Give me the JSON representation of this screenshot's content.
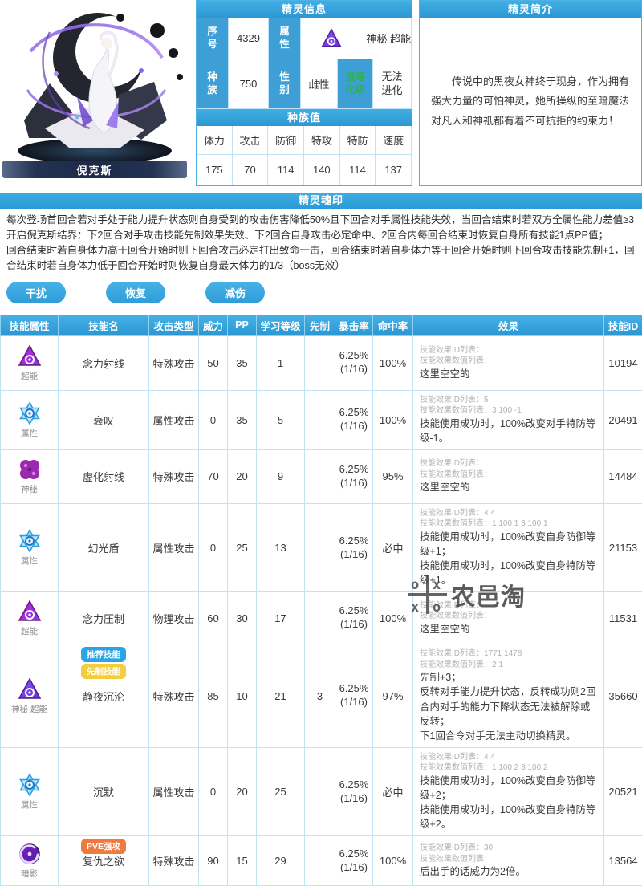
{
  "colors": {
    "accent_blue": "#2f9bd6",
    "label_blue": "#3e9fd7",
    "evo_green": "#2fae62",
    "badge_blue": "#2aa4e4",
    "badge_yellow": "#f3cd3c",
    "badge_orange": "#ee7b3d"
  },
  "character": {
    "name": "倪克斯"
  },
  "info": {
    "title": "精灵信息",
    "no_label": "序\n号",
    "no_value": "4329",
    "attr_label": "属\n性",
    "attr_value": "神秘 超能",
    "attr_icon": "shenmi-chaoneng-triangle-icon",
    "race_label": "种\n族",
    "race_value": "750",
    "gender_label": "性\n别",
    "gender_value": "雌性",
    "evo_label": "进等\n化级",
    "evo_value": "无法\n进化",
    "stats_title": "种族值",
    "stats": [
      {
        "label": "体力",
        "value": "175"
      },
      {
        "label": "攻击",
        "value": "70"
      },
      {
        "label": "防御",
        "value": "114"
      },
      {
        "label": "特攻",
        "value": "140"
      },
      {
        "label": "特防",
        "value": "114"
      },
      {
        "label": "速度",
        "value": "137"
      }
    ]
  },
  "profile": {
    "title": "精灵简介",
    "text": "传说中的黑夜女神终于现身，作为拥有强大力量的可怕神灵，她所操纵的至暗魔法对凡人和神祇都有着不可抗拒的约束力！"
  },
  "soul_seal": {
    "title": "精灵魂印",
    "paragraph1": "每次登场首回合若对手处于能力提升状态则自身受到的攻击伤害降低50%且下回合对手属性技能失效，当回合结束时若双方全属性能力差值≥3开启倪克斯结界：下2回合对手攻击技能先制效果失效、下2回合自身攻击必定命中、2回合内每回合结束时恢复自身所有技能1点PP值；",
    "paragraph2": "回合结束时若自身体力高于回合开始时则下回合攻击必定打出致命一击，回合结束时若自身体力等于回合开始时则下回合攻击技能先制+1，回合结束时若自身体力低于回合开始时则恢复自身最大体力的1/3（boss无效）",
    "tags": [
      "干扰",
      "恢复",
      "减伤"
    ]
  },
  "skills": {
    "headers": [
      "技能属性",
      "技能名",
      "攻击类型",
      "威力",
      "PP",
      "学习等级",
      "先制",
      "暴击率",
      "命中率",
      "效果",
      "技能ID"
    ],
    "rows": [
      {
        "attribute": "超能",
        "icon": "chaoneng-triangle-icon",
        "name": "念力射线",
        "badges": [],
        "attack_type": "特殊攻击",
        "power": "50",
        "pp": "35",
        "learn_level": "1",
        "priority": "",
        "crit": "6.25%",
        "crit_sub": "(1/16)",
        "hit": "100%",
        "effect_meta": [
          "技能效果ID列表：",
          "技能效果数值列表："
        ],
        "effect_lines": [
          "这里空空的"
        ],
        "id": "10194"
      },
      {
        "attribute": "属性",
        "icon": "shuxing-hexagram-icon",
        "name": "衰叹",
        "badges": [],
        "attack_type": "属性攻击",
        "power": "0",
        "pp": "35",
        "learn_level": "5",
        "priority": "",
        "crit": "6.25%",
        "crit_sub": "(1/16)",
        "hit": "100%",
        "effect_meta": [
          "技能效果ID列表：5",
          "技能效果数值列表：3 100 -1"
        ],
        "effect_lines": [
          "技能使用成功时，100%改变对手特防等级-1。"
        ],
        "id": "20491"
      },
      {
        "attribute": "神秘",
        "icon": "shenmi-clover-icon",
        "name": "虚化射线",
        "badges": [],
        "attack_type": "特殊攻击",
        "power": "70",
        "pp": "20",
        "learn_level": "9",
        "priority": "",
        "crit": "6.25%",
        "crit_sub": "(1/16)",
        "hit": "95%",
        "effect_meta": [
          "技能效果ID列表：",
          "技能效果数值列表："
        ],
        "effect_lines": [
          "这里空空的"
        ],
        "id": "14484"
      },
      {
        "attribute": "属性",
        "icon": "shuxing-hexagram-icon",
        "name": "幻光盾",
        "badges": [],
        "attack_type": "属性攻击",
        "power": "0",
        "pp": "25",
        "learn_level": "13",
        "priority": "",
        "crit": "6.25%",
        "crit_sub": "(1/16)",
        "hit": "必中",
        "effect_meta": [
          "技能效果ID列表：4 4",
          "技能效果数值列表：1 100 1 3 100 1"
        ],
        "effect_lines": [
          "技能使用成功时，100%改变自身防御等级+1；",
          "技能使用成功时，100%改变自身特防等级+1。"
        ],
        "id": "21153"
      },
      {
        "attribute": "超能",
        "icon": "chaoneng-triangle-icon",
        "name": "念力压制",
        "badges": [],
        "attack_type": "物理攻击",
        "power": "60",
        "pp": "30",
        "learn_level": "17",
        "priority": "",
        "crit": "6.25%",
        "crit_sub": "(1/16)",
        "hit": "100%",
        "effect_meta": [
          "技能效果ID列表：",
          "技能效果数值列表："
        ],
        "effect_lines": [
          "这里空空的"
        ],
        "id": "11531"
      },
      {
        "attribute": "神秘 超能",
        "icon": "shenmi-chaoneng-triangle-icon",
        "name": "静夜沉沦",
        "badges": [
          {
            "text": "推荐技能",
            "color": "blue"
          },
          {
            "text": "先制技能",
            "color": "yellow"
          }
        ],
        "attack_type": "特殊攻击",
        "power": "85",
        "pp": "10",
        "learn_level": "21",
        "priority": "3",
        "crit": "6.25%",
        "crit_sub": "(1/16)",
        "hit": "97%",
        "effect_meta": [
          "技能效果ID列表：1771 1478",
          "技能效果数值列表：2 1"
        ],
        "effect_lines": [
          "先制+3；",
          "反转对手能力提升状态，反转成功则2回合内对手的能力下降状态无法被解除或反转；",
          "下1回合令对手无法主动切换精灵。"
        ],
        "id": "35660"
      },
      {
        "attribute": "属性",
        "icon": "shuxing-hexagram-icon",
        "name": "沉默",
        "badges": [],
        "attack_type": "属性攻击",
        "power": "0",
        "pp": "20",
        "learn_level": "25",
        "priority": "",
        "crit": "6.25%",
        "crit_sub": "(1/16)",
        "hit": "必中",
        "effect_meta": [
          "技能效果ID列表：4 4",
          "技能效果数值列表：1 100 2 3 100 2"
        ],
        "effect_lines": [
          "技能使用成功时，100%改变自身防御等级+2；",
          "技能使用成功时，100%改变自身特防等级+2。"
        ],
        "id": "20521"
      },
      {
        "attribute": "暗影",
        "icon": "anying-swirl-icon",
        "name": "复仇之欲",
        "badges": [
          {
            "text": "PVE强攻",
            "color": "orange"
          }
        ],
        "attack_type": "特殊攻击",
        "power": "90",
        "pp": "15",
        "learn_level": "29",
        "priority": "",
        "crit": "6.25%",
        "crit_sub": "(1/16)",
        "hit": "100%",
        "effect_meta": [
          "技能效果ID列表：30",
          "技能效果数值列表："
        ],
        "effect_lines": [
          "后出手的话威力为2倍。"
        ],
        "id": "13564"
      }
    ]
  },
  "watermark": {
    "text": "农邑淘"
  }
}
